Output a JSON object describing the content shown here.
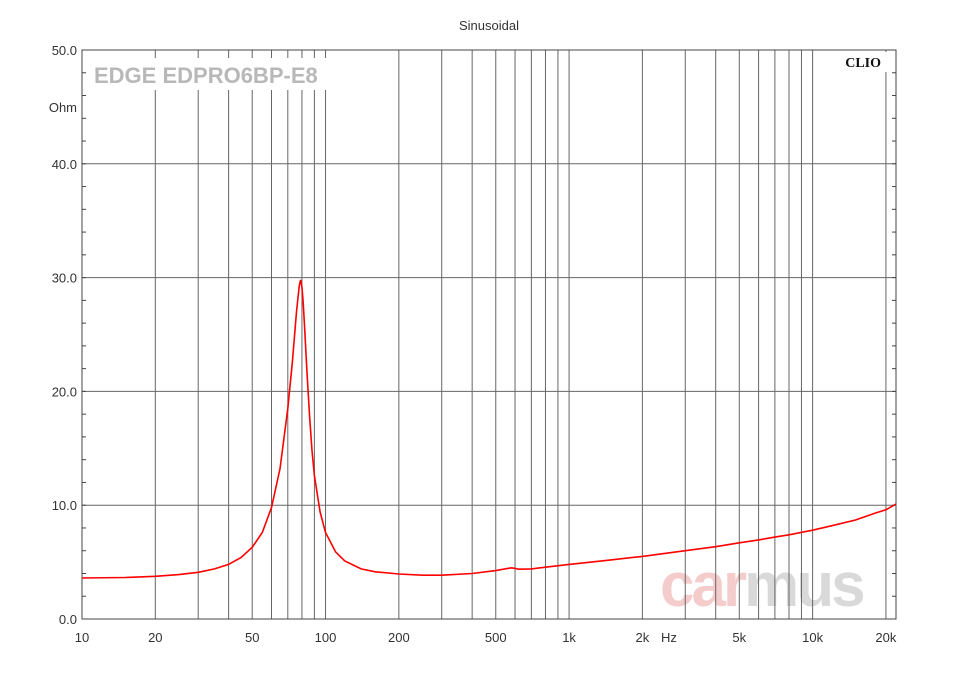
{
  "chart_data": {
    "type": "line",
    "title": "Sinusoidal",
    "model_label": "EDGE EDPRO6BP-E8",
    "brand_label": "CLIO",
    "watermark": {
      "part1": "car",
      "part2": "mus",
      "color1": "#f4cccc",
      "color2": "#d9d9d9"
    },
    "x_scale": "log",
    "xlim": [
      10,
      22000
    ],
    "ylim": [
      0,
      50
    ],
    "xlabel": "Hz",
    "ylabel": "Ohm",
    "x_ticks": [
      {
        "value": 10,
        "label": "10"
      },
      {
        "value": 20,
        "label": "20"
      },
      {
        "value": 50,
        "label": "50"
      },
      {
        "value": 100,
        "label": "100"
      },
      {
        "value": 200,
        "label": "200"
      },
      {
        "value": 500,
        "label": "500"
      },
      {
        "value": 1000,
        "label": "1k"
      },
      {
        "value": 2000,
        "label": "2k"
      },
      {
        "value": 5000,
        "label": "5k"
      },
      {
        "value": 10000,
        "label": "10k"
      },
      {
        "value": 20000,
        "label": "20k"
      }
    ],
    "y_ticks": [
      {
        "value": 0,
        "label": "0.0"
      },
      {
        "value": 10,
        "label": "10.0"
      },
      {
        "value": 20,
        "label": "20.0"
      },
      {
        "value": 30,
        "label": "30.0"
      },
      {
        "value": 40,
        "label": "40.0"
      },
      {
        "value": 50,
        "label": "50.0"
      }
    ],
    "grid": true,
    "grid_x_values": [
      20,
      30,
      40,
      50,
      60,
      70,
      80,
      90,
      100,
      200,
      300,
      400,
      500,
      600,
      700,
      800,
      900,
      1000,
      2000,
      3000,
      4000,
      5000,
      6000,
      7000,
      8000,
      9000,
      10000,
      20000
    ],
    "line_color": "#ff0000",
    "series": [
      {
        "name": "",
        "x": [
          10,
          15,
          20,
          25,
          30,
          35,
          40,
          45,
          50,
          55,
          60,
          65,
          70,
          73,
          76,
          78,
          79,
          80,
          81,
          82,
          84,
          86,
          88,
          90,
          95,
          100,
          110,
          120,
          140,
          160,
          200,
          250,
          300,
          400,
          500,
          580,
          600,
          620,
          700,
          800,
          1000,
          1500,
          2000,
          3000,
          4000,
          5000,
          6000,
          7000,
          8000,
          10000,
          12000,
          15000,
          18000,
          20000,
          22000
        ],
        "y": [
          3.6,
          3.65,
          3.75,
          3.9,
          4.1,
          4.4,
          4.8,
          5.4,
          6.3,
          7.6,
          9.8,
          13.2,
          18.5,
          22.5,
          27.0,
          29.3,
          29.8,
          29.2,
          27.8,
          25.8,
          21.5,
          17.8,
          14.8,
          12.6,
          9.4,
          7.6,
          5.9,
          5.1,
          4.4,
          4.15,
          3.95,
          3.85,
          3.85,
          4.0,
          4.25,
          4.5,
          4.45,
          4.38,
          4.4,
          4.55,
          4.8,
          5.2,
          5.5,
          6.0,
          6.35,
          6.7,
          6.95,
          7.2,
          7.4,
          7.8,
          8.2,
          8.7,
          9.3,
          9.6,
          10.1
        ]
      }
    ]
  }
}
